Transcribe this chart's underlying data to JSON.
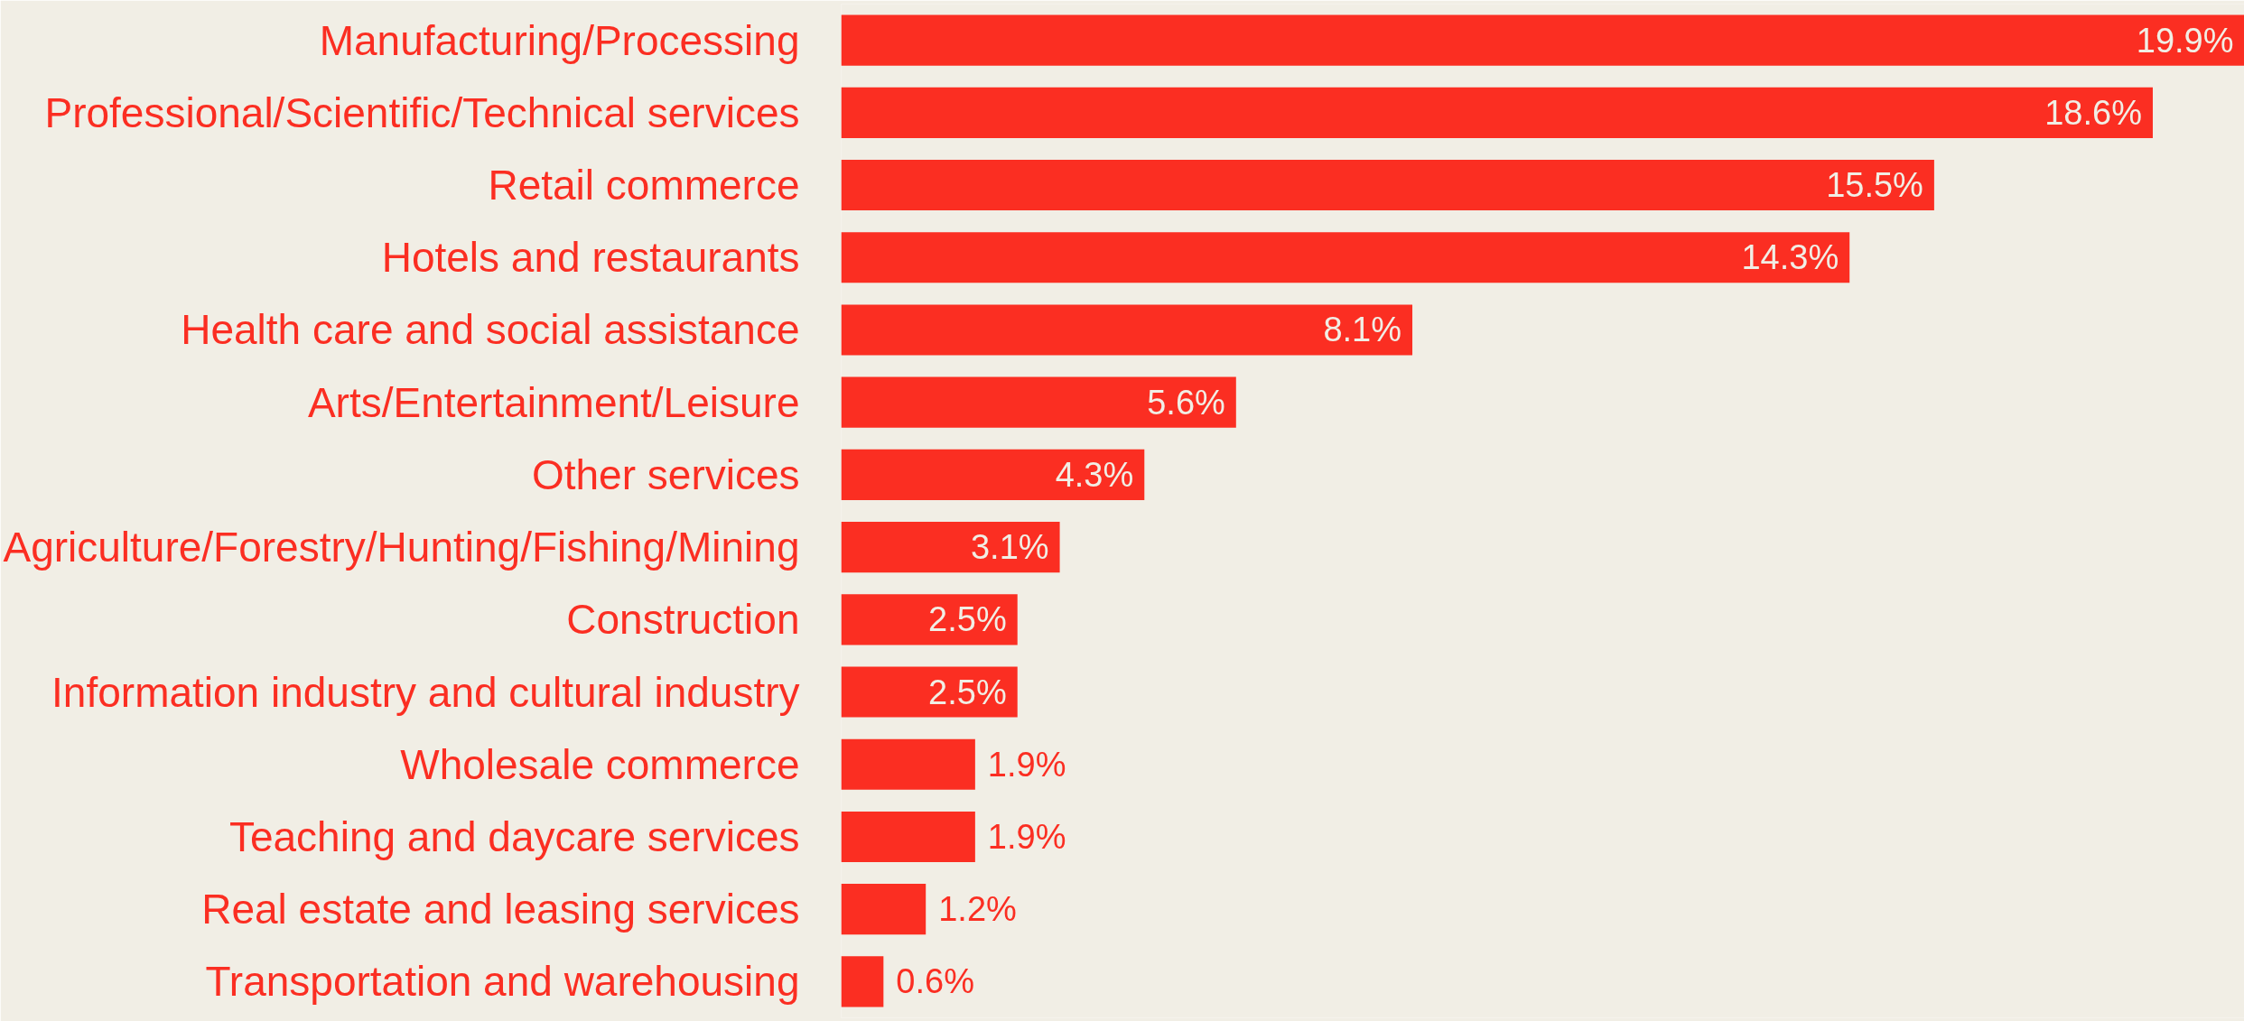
{
  "chart_data": {
    "type": "bar",
    "orientation": "horizontal",
    "color": "#fb2e22",
    "categories": [
      "Manufacturing/Processing",
      "Professional/Scientific/Technical services",
      "Retail commerce",
      "Hotels and restaurants",
      "Health care and social assistance",
      "Arts/Entertainment/Leisure",
      "Other services",
      "Agriculture/Forestry/Hunting/Fishing/Mining",
      "Construction",
      "Information industry and cultural industry",
      "Wholesale commerce",
      "Teaching and daycare services",
      "Real estate and leasing services",
      "Transportation and warehousing"
    ],
    "values": [
      19.9,
      18.6,
      15.5,
      14.3,
      8.1,
      5.6,
      4.3,
      3.1,
      2.5,
      2.5,
      1.9,
      1.9,
      1.2,
      0.6
    ],
    "value_labels": [
      "19.9%",
      "18.6%",
      "15.5%",
      "14.3%",
      "8.1%",
      "5.6%",
      "4.3%",
      "3.1%",
      "2.5%",
      "2.5%",
      "1.9%",
      "1.9%",
      "1.2%",
      "0.6%"
    ]
  }
}
